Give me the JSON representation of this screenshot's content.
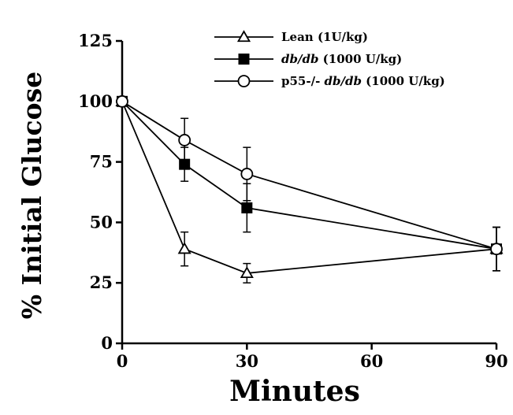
{
  "chart_data": {
    "type": "line",
    "title": "",
    "xlabel": "Minutes",
    "ylabel": "% Initial Glucose",
    "xlim": [
      0,
      90
    ],
    "ylim": [
      0,
      125
    ],
    "xticks": [
      0,
      30,
      60,
      90
    ],
    "yticks": [
      0,
      25,
      50,
      75,
      100,
      125
    ],
    "grid": false,
    "legend_position": "top-right",
    "series": [
      {
        "legend_parts": [
          {
            "text": "Lean",
            "italic": false
          },
          {
            "text": "(1U/kg)",
            "italic": false
          }
        ],
        "marker": "triangle-open",
        "x": [
          0,
          15,
          30,
          90
        ],
        "y": [
          100,
          39,
          29,
          39
        ],
        "err": [
          0,
          7,
          4,
          9
        ]
      },
      {
        "legend_parts": [
          {
            "text": "db/db",
            "italic": true
          },
          {
            "text": "(1000 U/kg)",
            "italic": false
          }
        ],
        "marker": "square-filled",
        "x": [
          0,
          15,
          30,
          90
        ],
        "y": [
          100,
          74,
          56,
          39
        ],
        "err": [
          0,
          7,
          10,
          9
        ]
      },
      {
        "legend_parts": [
          {
            "text": "p55-/-",
            "italic": false
          },
          {
            "text": "db/db",
            "italic": true
          },
          {
            "text": "(1000 U/kg)",
            "italic": false
          }
        ],
        "marker": "circle-open",
        "x": [
          0,
          15,
          30,
          90
        ],
        "y": [
          100,
          84,
          70,
          39
        ],
        "err": [
          0,
          9,
          11,
          9
        ]
      }
    ]
  }
}
